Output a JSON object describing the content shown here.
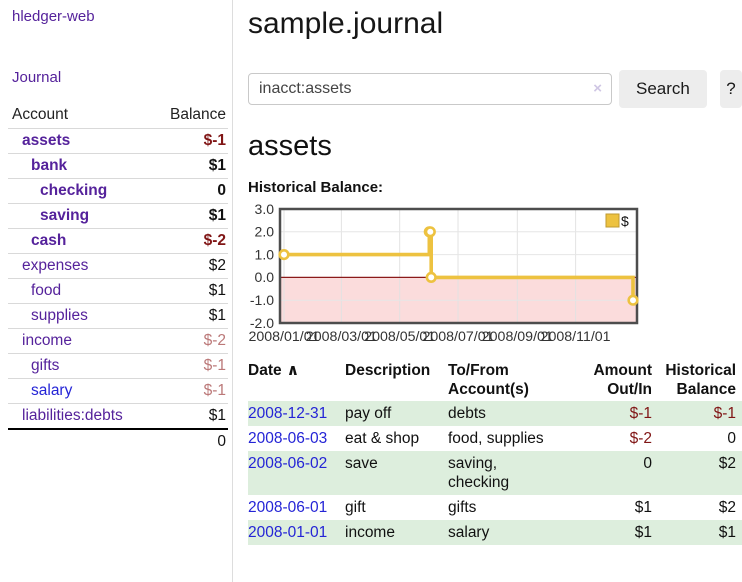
{
  "colors": {
    "link_purple": "#55229b",
    "link_blue": "#2424d6",
    "negative": "#801515",
    "negative_dim": "#bb7878",
    "row_stripe": "#ddeedd",
    "series_yellow": "#edc240",
    "negative_region_fill": "#fbdcdc",
    "zero_line": "#8b1a1a"
  },
  "sidebar": {
    "brand": "hledger-web",
    "journal_label": "Journal",
    "accounts": {
      "header_account": "Account",
      "header_balance": "Balance",
      "rows": [
        {
          "name": "assets",
          "indent": 1,
          "balance": "$-1",
          "bold": true,
          "link": "purple",
          "balance_style": "neg"
        },
        {
          "name": "bank",
          "indent": 2,
          "balance": "$1",
          "bold": true,
          "link": "purple",
          "balance_style": "pos"
        },
        {
          "name": "checking",
          "indent": 3,
          "balance": "0",
          "bold": true,
          "link": "purple",
          "balance_style": "pos"
        },
        {
          "name": "saving",
          "indent": 3,
          "balance": "$1",
          "bold": true,
          "link": "purple",
          "balance_style": "pos"
        },
        {
          "name": "cash",
          "indent": 2,
          "balance": "$-2",
          "bold": true,
          "link": "purple",
          "balance_style": "neg"
        },
        {
          "name": "expenses",
          "indent": 1,
          "balance": "$2",
          "bold": false,
          "link": "purple",
          "balance_style": "pos"
        },
        {
          "name": "food",
          "indent": 2,
          "balance": "$1",
          "bold": false,
          "link": "purple",
          "balance_style": "pos"
        },
        {
          "name": "supplies",
          "indent": 2,
          "balance": "$1",
          "bold": false,
          "link": "purple",
          "balance_style": "pos"
        },
        {
          "name": "income",
          "indent": 1,
          "balance": "$-2",
          "bold": false,
          "link": "purple",
          "balance_style": "dim"
        },
        {
          "name": "gifts",
          "indent": 2,
          "balance": "$-1",
          "bold": false,
          "link": "purple",
          "balance_style": "dim"
        },
        {
          "name": "salary",
          "indent": 2,
          "balance": "$-1",
          "bold": false,
          "link": "blue",
          "balance_style": "dim"
        },
        {
          "name": "liabilities:debts",
          "indent": 1,
          "balance": "$1",
          "bold": false,
          "link": "purple",
          "balance_style": "pos"
        }
      ],
      "total": "0"
    }
  },
  "main": {
    "title": "sample.journal",
    "search": {
      "value": "inacct:assets",
      "clear_icon": "×",
      "button_label": "Search",
      "help_label": "?"
    },
    "account_heading": "assets",
    "chart_label": "Historical Balance:"
  },
  "chart_data": {
    "type": "line",
    "step": true,
    "legend": "$",
    "legend_position": "top-right",
    "grid": true,
    "ylim": [
      -2,
      3
    ],
    "yticks": [
      "3.0",
      "2.0",
      "1.0",
      "0.0",
      "-1.0",
      "-2.0"
    ],
    "xticks": [
      "2008/01/01",
      "2008/03/01",
      "2008/05/01",
      "2008/07/01",
      "2008/09/01",
      "2008/11/01"
    ],
    "xrange": [
      "2008-01-01",
      "2008-12-31"
    ],
    "series": [
      {
        "name": "$",
        "color": "#edc240",
        "points": [
          {
            "date": "2008-01-01",
            "value": 1
          },
          {
            "date": "2008-06-01",
            "value": 2
          },
          {
            "date": "2008-06-02",
            "value": 2
          },
          {
            "date": "2008-06-03",
            "value": 0
          },
          {
            "date": "2008-12-31",
            "value": -1
          }
        ]
      }
    ],
    "negative_region_below": 0
  },
  "register": {
    "headers": {
      "date": "Date",
      "sort_icon": "∧",
      "description": "Description",
      "tofrom": "To/From Account(s)",
      "amount": "Amount Out/In",
      "balance": "Historical Balance"
    },
    "rows": [
      {
        "date": "2008-12-31",
        "description": "pay off",
        "accounts": "debts",
        "amount": "$-1",
        "amount_style": "neg",
        "balance": "$-1",
        "balance_style": "neg"
      },
      {
        "date": "2008-06-03",
        "description": "eat & shop",
        "accounts": "food, supplies",
        "amount": "$-2",
        "amount_style": "neg",
        "balance": "0",
        "balance_style": "pos"
      },
      {
        "date": "2008-06-02",
        "description": "save",
        "accounts": "saving, checking",
        "amount": "0",
        "amount_style": "pos",
        "balance": "$2",
        "balance_style": "pos"
      },
      {
        "date": "2008-06-01",
        "description": "gift",
        "accounts": "gifts",
        "amount": "$1",
        "amount_style": "pos",
        "balance": "$2",
        "balance_style": "pos"
      },
      {
        "date": "2008-01-01",
        "description": "income",
        "accounts": "salary",
        "amount": "$1",
        "amount_style": "pos",
        "balance": "$1",
        "balance_style": "pos"
      }
    ]
  }
}
